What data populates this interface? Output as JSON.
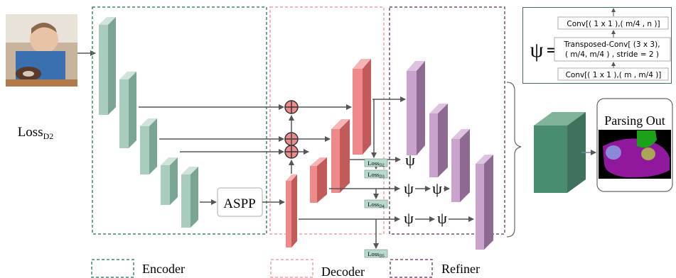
{
  "loss_side": {
    "base": "Loss",
    "sub": "D2"
  },
  "legend": {
    "encoder": "Encoder",
    "decoder": "Decoder",
    "refiner": "Refiner"
  },
  "aspp": "ASPP",
  "psi": "ψ",
  "equals": "=",
  "loss_tags": [
    {
      "base": "Loss",
      "sub": "D2"
    },
    {
      "base": "Loss",
      "sub": "D3"
    },
    {
      "base": "Loss",
      "sub": "D4"
    },
    {
      "base": "Loss",
      "sub": "D5"
    }
  ],
  "psi_block": {
    "top": "Conv[( 1 x 1 ),( m/4 , n )]",
    "mid_line1": "Transposed-Conv[ (3 x 3),",
    "mid_line2": "( m/4, m/4 ) , stride = 2 )",
    "bottom": "Conv[( 1 x 1 ),( m , m/4 )]"
  },
  "parsing_out": "Parsing Out",
  "colors": {
    "encoder": "#a9cdbd",
    "decoder": "#ef8a8a",
    "refiner": "#c9a3cc",
    "output_block": "#4a8c70",
    "encoder_border": "#3e8a6c",
    "decoder_border": "#f1a0a0",
    "refiner_border": "#7a4a78"
  },
  "icons": {
    "input_photo": "child-photo",
    "sum": "plus-circle-icon",
    "output_map": "parsing-map"
  }
}
